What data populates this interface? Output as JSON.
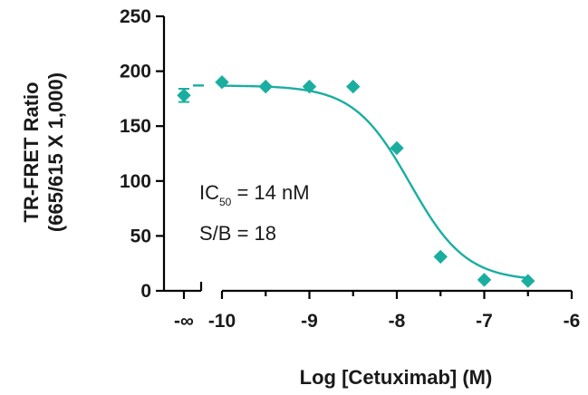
{
  "chart_data": {
    "type": "scatter",
    "xlabel": "Log [Cetuximab] (M)",
    "ylabel_lines": [
      "TR-FRET Ratio",
      "(665/615 X 1,000)"
    ],
    "ylim": [
      0,
      250
    ],
    "yticks": [
      0,
      50,
      100,
      150,
      200,
      250
    ],
    "xlim": [
      -10,
      -6
    ],
    "xticks": [
      -10,
      -9,
      -8,
      -7,
      -6
    ],
    "xtick_labels": [
      "-10",
      "-9",
      "-8",
      "-7",
      "-6"
    ],
    "baseline": {
      "x_label": "-∞",
      "y": 178,
      "error": 6
    },
    "series": [
      {
        "color": "#1aaea0",
        "marker": "diamond",
        "x": [
          -10,
          -9.5,
          -9,
          -8.5,
          -8,
          -7.5,
          -7,
          -6.5
        ],
        "y": [
          190,
          186,
          186,
          186,
          130,
          31,
          10,
          9
        ]
      }
    ],
    "fit": {
      "top": 187,
      "bottom": 9,
      "log_ic50": -7.85,
      "hill": -1.35
    },
    "annotations": {
      "ic50_prefix": "IC",
      "ic50_sub": "50",
      "ic50_suffix": " = 14 nM",
      "sb": "S/B = 18"
    }
  }
}
